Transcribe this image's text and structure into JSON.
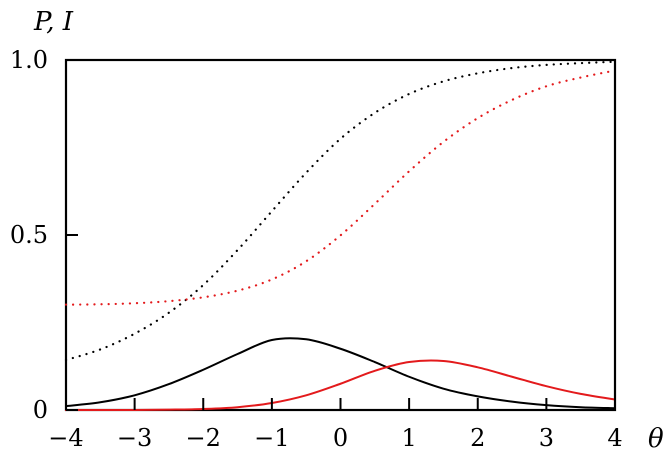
{
  "chart_data": {
    "type": "line",
    "title": "",
    "ylabel": "P, I",
    "xlabel": "θ",
    "xlim": [
      -4,
      4
    ],
    "ylim": [
      0,
      1
    ],
    "grid": false,
    "legend": "none",
    "x_ticks": [
      -4,
      -3,
      -2,
      -1,
      0,
      1,
      2,
      3,
      4
    ],
    "x_tick_labels": [
      "−4",
      "−3",
      "−2",
      "−1",
      "0",
      "1",
      "2",
      "3",
      "4"
    ],
    "y_ticks": [
      0,
      0.5,
      1
    ],
    "y_tick_labels": [
      "0",
      "0.5",
      "1.0"
    ],
    "series": [
      {
        "style": "dotted",
        "color": "#000000",
        "x": [
          -4,
          -3.5,
          -3,
          -2.5,
          -2,
          -1.5,
          -1,
          -0.5,
          0,
          0.5,
          1,
          1.5,
          2,
          2.5,
          3,
          3.5,
          4
        ],
        "values": [
          0.143,
          0.173,
          0.218,
          0.278,
          0.357,
          0.457,
          0.568,
          0.678,
          0.775,
          0.849,
          0.903,
          0.939,
          0.962,
          0.977,
          0.986,
          0.991,
          0.995
        ]
      },
      {
        "style": "dotted",
        "color": "#e31a1c",
        "x": [
          -4,
          -3.5,
          -3,
          -2.5,
          -2,
          -1.5,
          -1,
          -0.5,
          0,
          0.5,
          1,
          1.5,
          2,
          2.5,
          3,
          3.5,
          4
        ],
        "values": [
          0.301,
          0.302,
          0.305,
          0.311,
          0.322,
          0.341,
          0.373,
          0.425,
          0.499,
          0.589,
          0.682,
          0.766,
          0.834,
          0.886,
          0.925,
          0.95,
          0.97
        ]
      },
      {
        "style": "solid",
        "color": "#000000",
        "x": [
          -4,
          -3.5,
          -3,
          -2.5,
          -2,
          -1.5,
          -1,
          -0.5,
          0,
          0.5,
          1,
          1.5,
          2,
          2.5,
          3,
          3.5,
          4
        ],
        "values": [
          0.011,
          0.022,
          0.042,
          0.074,
          0.115,
          0.16,
          0.2,
          0.202,
          0.175,
          0.137,
          0.095,
          0.061,
          0.039,
          0.024,
          0.014,
          0.008,
          0.005
        ]
      },
      {
        "style": "solid",
        "color": "#e31a1c",
        "x": [
          -4,
          -3.5,
          -3,
          -2.5,
          -2,
          -1.5,
          -1,
          -0.5,
          0,
          0.5,
          1,
          1.5,
          2,
          2.5,
          3,
          3.5,
          4
        ],
        "values": [
          0.0,
          0.0,
          0.0,
          0.001,
          0.003,
          0.008,
          0.02,
          0.042,
          0.075,
          0.112,
          0.137,
          0.14,
          0.122,
          0.095,
          0.068,
          0.046,
          0.03
        ]
      }
    ]
  }
}
